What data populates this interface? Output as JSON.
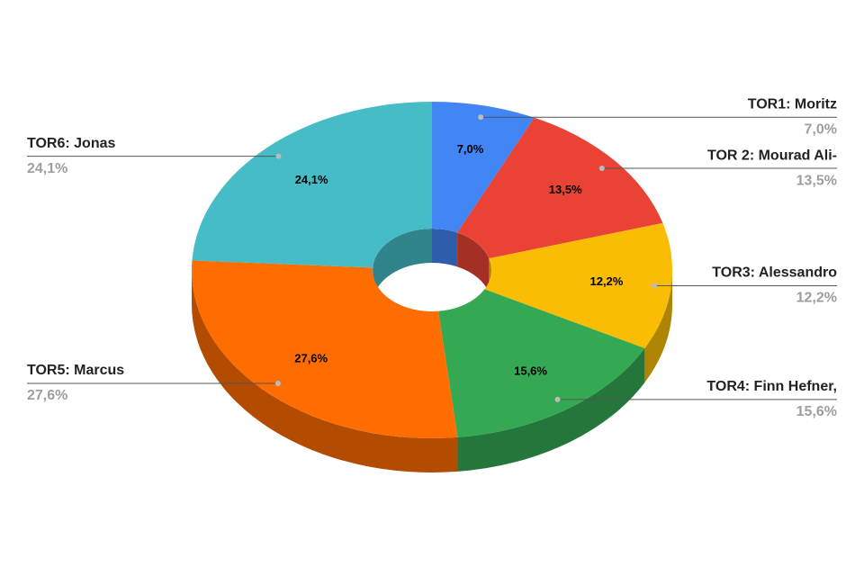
{
  "chart_data": {
    "type": "pie",
    "categories": [
      "TOR1: Moritz",
      "TOR 2: Mourad Ali-",
      "TOR3: Alessandro",
      "TOR4: Finn Hefner,",
      "TOR5: Marcus",
      "TOR6: Jonas"
    ],
    "values": [
      7.0,
      13.5,
      12.2,
      15.6,
      27.6,
      24.1
    ],
    "value_labels": [
      "7,0%",
      "13,5%",
      "12,2%",
      "15,6%",
      "27,6%",
      "24,1%"
    ],
    "colors": [
      "#4285f4",
      "#ea4335",
      "#fbbc04",
      "#34a853",
      "#ff6d01",
      "#46bdc6"
    ]
  }
}
